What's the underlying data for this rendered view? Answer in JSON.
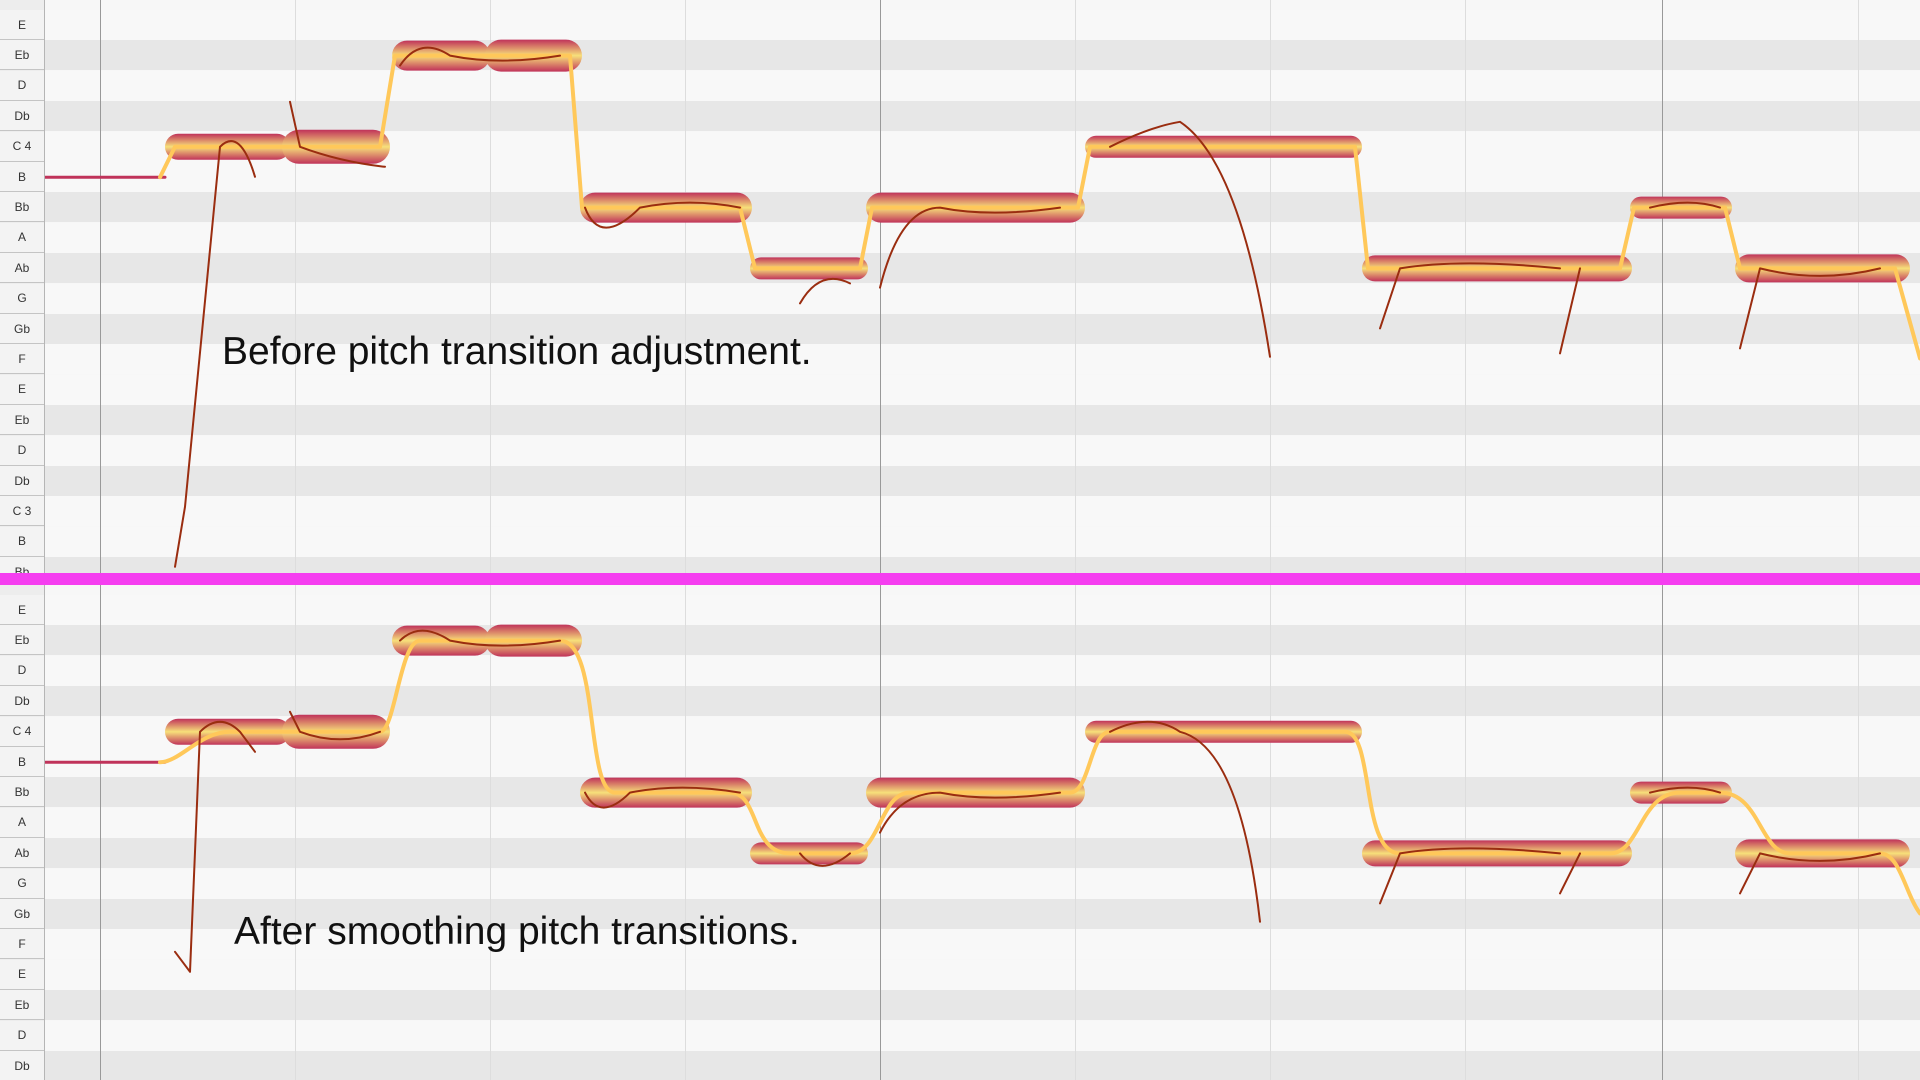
{
  "top_pane": {
    "keys": [
      "E",
      "Eb",
      "D",
      "Db",
      "C 4",
      "B",
      "Bb",
      "A",
      "Ab",
      "G",
      "Gb",
      "F",
      "E",
      "Eb",
      "D",
      "Db",
      "C 3",
      "B",
      "Bb"
    ],
    "caption": "Before pitch transition adjustment."
  },
  "bottom_pane": {
    "keys": [
      "E",
      "Eb",
      "D",
      "Db",
      "C 4",
      "B",
      "Bb",
      "A",
      "Ab",
      "G",
      "Gb",
      "F",
      "E",
      "Eb",
      "D",
      "Db"
    ],
    "caption": "After smoothing pitch transitions."
  },
  "colors": {
    "divider": "#f53ef0",
    "note_outer": "#c0335a",
    "note_inner": "#f7e07a",
    "pitch_curve": "#9a2d10",
    "transition_curve": "#ffc85a"
  },
  "icons": [
    "note-blob-shape",
    "pitch-curve-line"
  ]
}
